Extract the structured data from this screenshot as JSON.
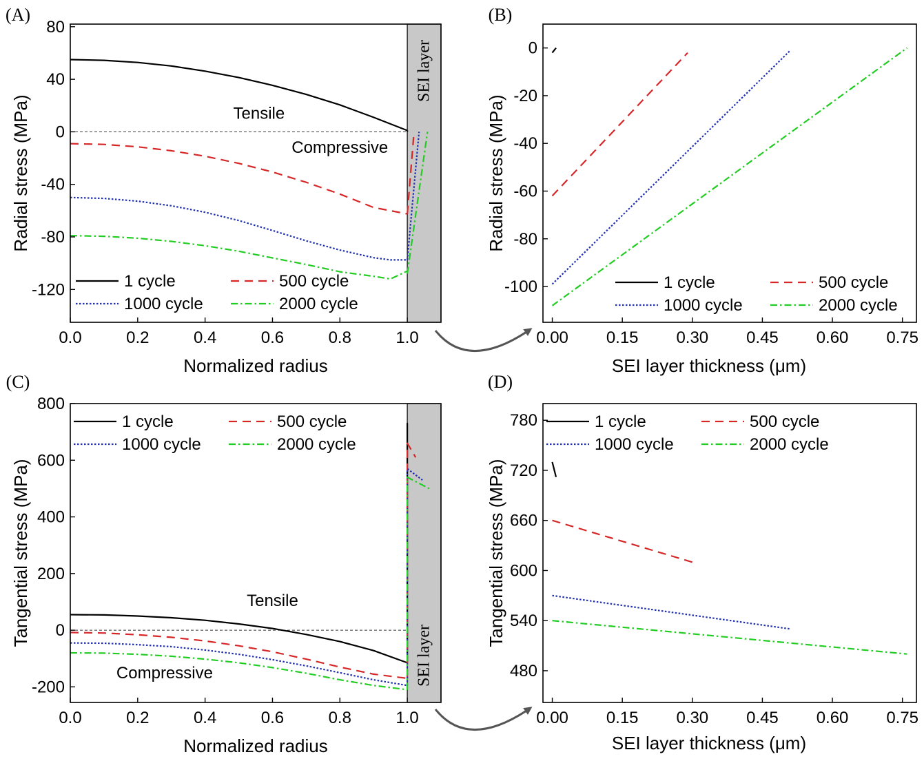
{
  "legend_labels": [
    "1 cycle",
    "500 cycle",
    "1000 cycle",
    "2000 cycle"
  ],
  "colors": {
    "1 cycle": "#000000",
    "500 cycle": "#d62728",
    "1000 cycle": "#2030b0",
    "2000 cycle": "#22cc22",
    "sei_fill": "#c8c8c8"
  },
  "chart_data": [
    {
      "panel": "(A)",
      "type": "line",
      "xlabel": "Normalized radius",
      "ylabel": "Radial stress (MPa)",
      "xlim": [
        0.0,
        1.1
      ],
      "ylim": [
        -145,
        82
      ],
      "xticks": [
        "0.0",
        "0.2",
        "0.4",
        "0.6",
        "0.8",
        "1.0"
      ],
      "xtick_values": [
        0.0,
        0.2,
        0.4,
        0.6,
        0.8,
        1.0
      ],
      "yticks": [
        "80",
        "40",
        "0",
        "-40",
        "-80",
        "-120"
      ],
      "ytick_values": [
        80,
        40,
        0,
        -40,
        -80,
        -120
      ],
      "zero_line": true,
      "sei_region": [
        1.0,
        1.1
      ],
      "sei_text": "SEI layer",
      "sei_text_pos": "top",
      "annotations": [
        {
          "text": "Tensile",
          "x": 0.56,
          "y": 10
        },
        {
          "text": "Compressive",
          "x": 0.8,
          "y": -16
        }
      ],
      "legend_position": "bottom-left",
      "series": [
        {
          "name": "1 cycle",
          "x": [
            0,
            0.1,
            0.2,
            0.3,
            0.4,
            0.5,
            0.6,
            0.7,
            0.8,
            0.9,
            1.0
          ],
          "y": [
            55,
            54.4,
            52.8,
            50.1,
            46.2,
            41.3,
            35.4,
            28.5,
            20.5,
            11.0,
            1.0
          ]
        },
        {
          "name": "1 cycle",
          "x": [
            1.0,
            1.0005
          ],
          "y": [
            1.0,
            0
          ]
        },
        {
          "name": "500 cycle",
          "x": [
            0,
            0.1,
            0.2,
            0.3,
            0.4,
            0.5,
            0.6,
            0.7,
            0.8,
            0.9,
            1.0
          ],
          "y": [
            -9,
            -9.6,
            -11.4,
            -14.4,
            -18.6,
            -24.0,
            -30.6,
            -38.4,
            -47.4,
            -57.6,
            -62.5
          ]
        },
        {
          "name": "500 cycle",
          "x": [
            1.0,
            1.02
          ],
          "y": [
            -62.5,
            0
          ]
        },
        {
          "name": "1000 cycle",
          "x": [
            0,
            0.1,
            0.2,
            0.3,
            0.4,
            0.5,
            0.6,
            0.7,
            0.8,
            0.9,
            0.95,
            1.0
          ],
          "y": [
            -50,
            -50.7,
            -52.8,
            -56.3,
            -61.2,
            -67.5,
            -75.1,
            -83.0,
            -90.0,
            -95.8,
            -97.5,
            -97.5
          ]
        },
        {
          "name": "1000 cycle",
          "x": [
            1.0,
            1.035
          ],
          "y": [
            -97.5,
            0
          ]
        },
        {
          "name": "2000 cycle",
          "x": [
            0,
            0.1,
            0.2,
            0.3,
            0.4,
            0.5,
            0.6,
            0.7,
            0.8,
            0.9,
            0.95,
            1.0
          ],
          "y": [
            -79,
            -79.5,
            -81.0,
            -83.4,
            -86.7,
            -90.9,
            -96.0,
            -101.0,
            -106.5,
            -110.0,
            -112.0,
            -106.0
          ]
        },
        {
          "name": "2000 cycle",
          "x": [
            1.0,
            1.06
          ],
          "y": [
            -108.0,
            0
          ]
        }
      ]
    },
    {
      "panel": "(B)",
      "type": "line",
      "xlabel": "SEI layer thickness (μm)",
      "ylabel": "Radial stress (MPa)",
      "xlim": [
        -0.02,
        0.78
      ],
      "ylim": [
        -115,
        10
      ],
      "xticks": [
        "0.00",
        "0.15",
        "0.30",
        "0.45",
        "0.60",
        "0.75"
      ],
      "xtick_values": [
        0.0,
        0.15,
        0.3,
        0.45,
        0.6,
        0.75
      ],
      "yticks": [
        "0",
        "-20",
        "-40",
        "-60",
        "-80",
        "-100"
      ],
      "ytick_values": [
        0,
        -20,
        -40,
        -60,
        -80,
        -100
      ],
      "legend_position": "bottom-right",
      "series": [
        {
          "name": "1 cycle",
          "x": [
            0.0,
            0.008
          ],
          "y": [
            -2,
            0
          ]
        },
        {
          "name": "500 cycle",
          "x": [
            0.0,
            0.29
          ],
          "y": [
            -62,
            -2
          ]
        },
        {
          "name": "1000 cycle",
          "x": [
            0.0,
            0.51
          ],
          "y": [
            -99,
            -1
          ]
        },
        {
          "name": "2000 cycle",
          "x": [
            0.0,
            0.76
          ],
          "y": [
            -108,
            0
          ]
        }
      ]
    },
    {
      "panel": "(C)",
      "type": "line",
      "xlabel": "Normalized radius",
      "ylabel": "Tangential stress (MPa)",
      "xlim": [
        0.0,
        1.1
      ],
      "ylim": [
        -255,
        800
      ],
      "xticks": [
        "0.0",
        "0.2",
        "0.4",
        "0.6",
        "0.8",
        "1.0"
      ],
      "xtick_values": [
        0.0,
        0.2,
        0.4,
        0.6,
        0.8,
        1.0
      ],
      "yticks": [
        "800",
        "600",
        "400",
        "200",
        "0",
        "-200"
      ],
      "ytick_values": [
        800,
        600,
        400,
        200,
        0,
        -200
      ],
      "zero_line": true,
      "sei_region": [
        1.0,
        1.1
      ],
      "sei_text": "SEI layer",
      "sei_text_pos": "bottom",
      "annotations": [
        {
          "text": "Tensile",
          "x": 0.6,
          "y": 85
        },
        {
          "text": "Compressive",
          "x": 0.28,
          "y": -170
        }
      ],
      "legend_position": "top-left",
      "series": [
        {
          "name": "1 cycle",
          "x": [
            0,
            0.1,
            0.2,
            0.3,
            0.4,
            0.5,
            0.6,
            0.7,
            0.8,
            0.9,
            1.0
          ],
          "y": [
            55,
            54,
            50,
            44,
            35,
            22,
            6,
            -15,
            -40,
            -72,
            -115
          ]
        },
        {
          "name": "1 cycle",
          "x": [
            1.0,
            1.0,
            1.0
          ],
          "y": [
            -115,
            730,
            700
          ]
        },
        {
          "name": "500 cycle",
          "x": [
            0,
            0.1,
            0.2,
            0.3,
            0.4,
            0.5,
            0.6,
            0.7,
            0.8,
            0.9,
            1.0
          ],
          "y": [
            -8,
            -10,
            -16,
            -25,
            -38,
            -55,
            -76,
            -102,
            -130,
            -155,
            -170
          ]
        },
        {
          "name": "500 cycle",
          "x": [
            1.0,
            1.0,
            1.025
          ],
          "y": [
            -170,
            660,
            610
          ]
        },
        {
          "name": "1000 cycle",
          "x": [
            0,
            0.1,
            0.2,
            0.3,
            0.4,
            0.5,
            0.6,
            0.7,
            0.8,
            0.9,
            1.0
          ],
          "y": [
            -45,
            -46,
            -51,
            -58,
            -70,
            -85,
            -104,
            -126,
            -150,
            -175,
            -195
          ]
        },
        {
          "name": "1000 cycle",
          "x": [
            1.0,
            1.0,
            1.045
          ],
          "y": [
            -195,
            570,
            530
          ]
        },
        {
          "name": "2000 cycle",
          "x": [
            0,
            0.1,
            0.2,
            0.3,
            0.4,
            0.5,
            0.6,
            0.7,
            0.8,
            0.9,
            1.0
          ],
          "y": [
            -80,
            -81,
            -85,
            -92,
            -102,
            -115,
            -132,
            -152,
            -175,
            -195,
            -210
          ]
        },
        {
          "name": "2000 cycle",
          "x": [
            1.0,
            1.0,
            1.065
          ],
          "y": [
            -210,
            540,
            500
          ]
        }
      ]
    },
    {
      "panel": "(D)",
      "type": "line",
      "xlabel": "SEI layer thickness (μm)",
      "ylabel": "Tangential stress (MPa)",
      "xlim": [
        -0.02,
        0.78
      ],
      "ylim": [
        442,
        800
      ],
      "xticks": [
        "0.00",
        "0.15",
        "0.30",
        "0.45",
        "0.60",
        "0.75"
      ],
      "xtick_values": [
        0.0,
        0.15,
        0.3,
        0.45,
        0.6,
        0.75
      ],
      "yticks": [
        "780",
        "720",
        "660",
        "600",
        "540",
        "480"
      ],
      "ytick_values": [
        780,
        720,
        660,
        600,
        540,
        480
      ],
      "legend_position": "top-left",
      "series": [
        {
          "name": "1 cycle",
          "x": [
            0.0,
            0.008
          ],
          "y": [
            730,
            712
          ]
        },
        {
          "name": "500 cycle",
          "x": [
            0.0,
            0.3
          ],
          "y": [
            660,
            610
          ]
        },
        {
          "name": "1000 cycle",
          "x": [
            0.0,
            0.51
          ],
          "y": [
            570,
            530
          ]
        },
        {
          "name": "2000 cycle",
          "x": [
            0.0,
            0.76
          ],
          "y": [
            540,
            500
          ]
        }
      ]
    }
  ]
}
